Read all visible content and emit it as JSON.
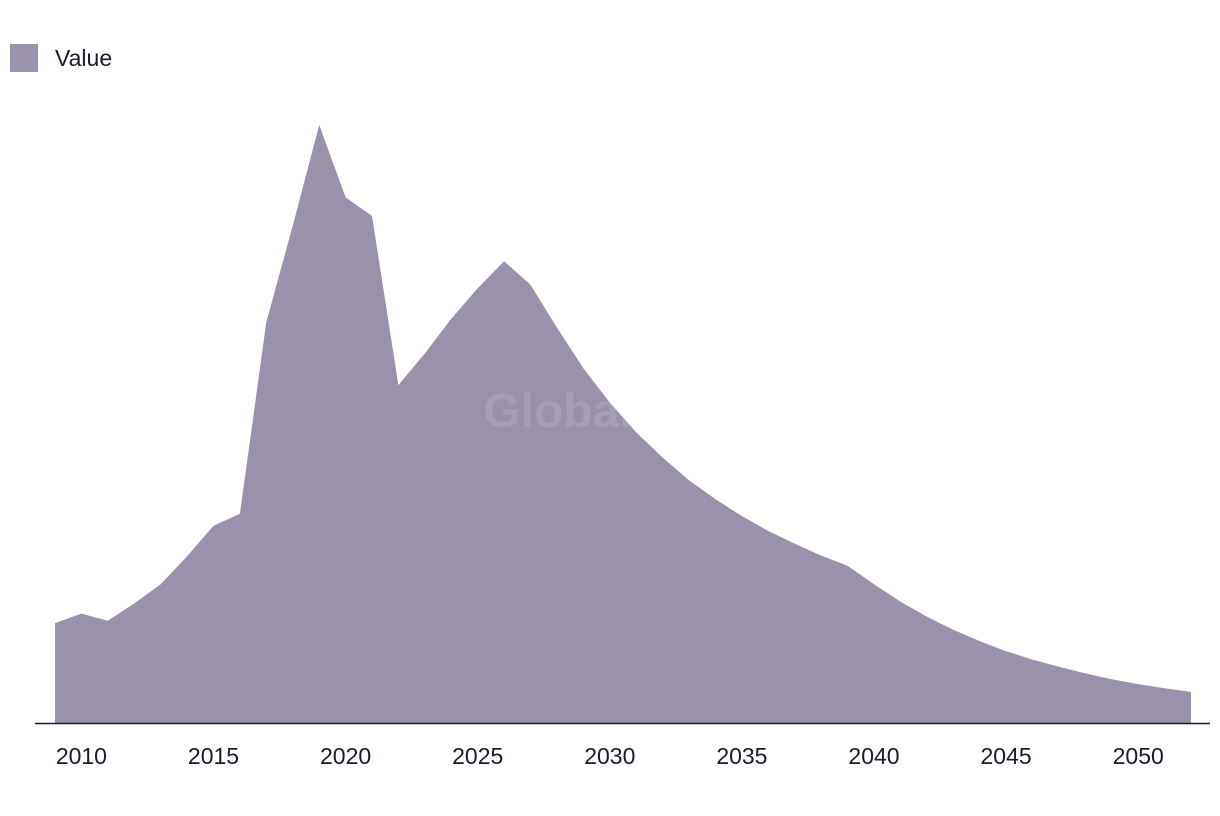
{
  "legend": {
    "label": "Value"
  },
  "watermark": "GlobalData",
  "colors": {
    "area": "#9a92ab",
    "axis": "#1a1a2e"
  },
  "chart_data": {
    "type": "area",
    "title": "",
    "xlabel": "",
    "ylabel": "",
    "legend_position": "top-left",
    "grid": false,
    "xlim": [
      2009,
      2052
    ],
    "ylim": [
      0,
      100
    ],
    "xticks": [
      2010,
      2015,
      2020,
      2025,
      2030,
      2035,
      2040,
      2045,
      2050
    ],
    "x": [
      2009,
      2010,
      2011,
      2012,
      2013,
      2014,
      2015,
      2016,
      2017,
      2018,
      2019,
      2020,
      2021,
      2022,
      2023,
      2024,
      2025,
      2026,
      2027,
      2028,
      2029,
      2030,
      2031,
      2032,
      2033,
      2034,
      2035,
      2036,
      2037,
      2038,
      2039,
      2040,
      2041,
      2042,
      2043,
      2044,
      2045,
      2046,
      2047,
      2048,
      2049,
      2050,
      2051,
      2052
    ],
    "series": [
      {
        "name": "Value",
        "values": [
          16.7,
          18.3,
          17.1,
          20.0,
          23.2,
          27.9,
          33.0,
          35.0,
          67.0,
          83.2,
          100.0,
          87.9,
          84.8,
          56.5,
          61.8,
          67.6,
          72.7,
          77.2,
          73.3,
          66.1,
          59.3,
          53.6,
          48.6,
          44.4,
          40.6,
          37.4,
          34.6,
          32.1,
          30.0,
          28.0,
          26.3,
          23.2,
          20.3,
          17.8,
          15.6,
          13.7,
          12.0,
          10.6,
          9.4,
          8.3,
          7.3,
          6.5,
          5.8,
          5.2
        ]
      }
    ]
  }
}
